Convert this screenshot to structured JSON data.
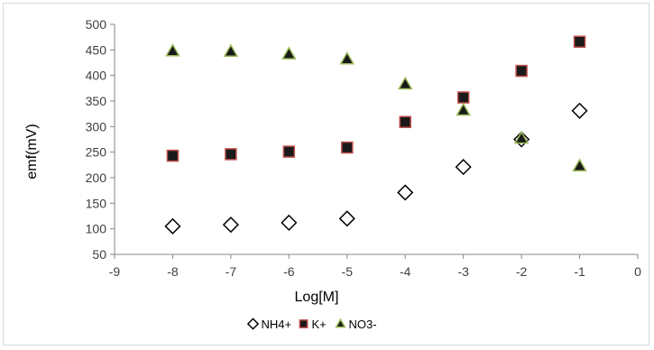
{
  "chart_data": {
    "type": "scatter",
    "title": "",
    "xlabel": "Log[M]",
    "ylabel": "emf(mV)",
    "xlim": [
      -9,
      0
    ],
    "ylim": [
      50,
      500
    ],
    "xticks": [
      -9,
      -8,
      -7,
      -6,
      -5,
      -4,
      -3,
      -2,
      -1,
      0
    ],
    "yticks": [
      50,
      100,
      150,
      200,
      250,
      300,
      350,
      400,
      450,
      500
    ],
    "grid": false,
    "legend_position": "bottom",
    "series": [
      {
        "name": "NH4+",
        "marker": "diamond",
        "fill": "#ffffff",
        "stroke": "#000000",
        "x": [
          -8,
          -7,
          -6,
          -5,
          -4,
          -3,
          -2,
          -1
        ],
        "y": [
          105,
          108,
          112,
          120,
          171,
          221,
          275,
          331
        ]
      },
      {
        "name": "K+",
        "marker": "square",
        "fill": "#1a1a1a",
        "stroke": "#c0504d",
        "x": [
          -8,
          -7,
          -6,
          -5,
          -4,
          -3,
          -2,
          -1
        ],
        "y": [
          243,
          246,
          251,
          259,
          309,
          357,
          409,
          466
        ]
      },
      {
        "name": "NO3-",
        "marker": "triangle",
        "fill": "#1a1a1a",
        "stroke": "#9bbb59",
        "x": [
          -8,
          -7,
          -6,
          -5,
          -4,
          -3,
          -2,
          -1
        ],
        "y": [
          448,
          447,
          442,
          432,
          383,
          332,
          277,
          223
        ]
      }
    ]
  }
}
